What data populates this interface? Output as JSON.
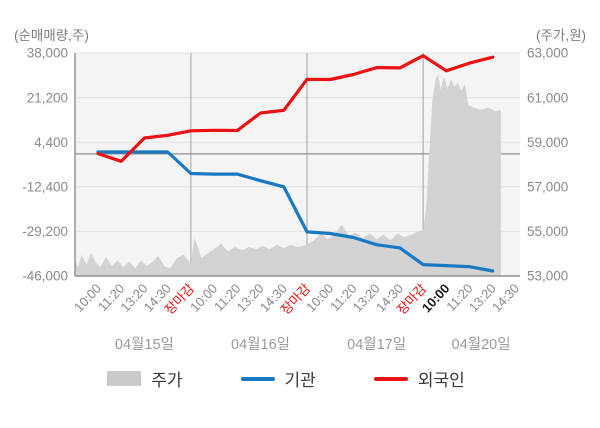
{
  "chart_data": {
    "type": "area+line",
    "title": "",
    "left_axis": {
      "title": "(순매매량,주)",
      "ticks": [
        "38,000",
        "21,200",
        "4,400",
        "-12,400",
        "-29,200",
        "-46,000"
      ],
      "range": [
        38000,
        -46000
      ]
    },
    "right_axis": {
      "title": "(주가,원)",
      "ticks": [
        "63,000",
        "61,000",
        "59,000",
        "57,000",
        "55,000",
        "53,000"
      ],
      "range": [
        63000,
        53000
      ]
    },
    "x_labels": [
      {
        "label": "10:00"
      },
      {
        "label": "11:20"
      },
      {
        "label": "13:20"
      },
      {
        "label": "14:30"
      },
      {
        "label": "장마감",
        "color": "red"
      },
      {
        "label": "10:00"
      },
      {
        "label": "11:20"
      },
      {
        "label": "13:20"
      },
      {
        "label": "14:30"
      },
      {
        "label": "장마감",
        "color": "red"
      },
      {
        "label": "10:00"
      },
      {
        "label": "11:20"
      },
      {
        "label": "13:20"
      },
      {
        "label": "14:30"
      },
      {
        "label": "장마감",
        "color": "red"
      },
      {
        "label": "10:00",
        "emphasis": true
      },
      {
        "label": "11:20"
      },
      {
        "label": "13:20"
      },
      {
        "label": "14:30"
      }
    ],
    "boundary_ticks": [
      4,
      9,
      14
    ],
    "day_groups": [
      {
        "label": "04월15일",
        "start": 0,
        "end": 4
      },
      {
        "label": "04월16일",
        "start": 5,
        "end": 9
      },
      {
        "label": "04월17일",
        "start": 10,
        "end": 14
      },
      {
        "label": "04월20일",
        "start": 15,
        "end": 18
      }
    ],
    "series": [
      {
        "name": "주가",
        "type": "area",
        "axis": "right",
        "color": "#d2d2d2",
        "points": [
          [
            -1,
            53700
          ],
          [
            -0.85,
            53400
          ],
          [
            -0.7,
            53950
          ],
          [
            -0.5,
            53500
          ],
          [
            -0.3,
            54050
          ],
          [
            -0.1,
            53600
          ],
          [
            0.1,
            53400
          ],
          [
            0.35,
            53850
          ],
          [
            0.6,
            53450
          ],
          [
            0.85,
            53700
          ],
          [
            1.1,
            53400
          ],
          [
            1.35,
            53650
          ],
          [
            1.6,
            53350
          ],
          [
            1.85,
            53700
          ],
          [
            2.1,
            53450
          ],
          [
            2.35,
            53650
          ],
          [
            2.6,
            53900
          ],
          [
            2.85,
            53450
          ],
          [
            3.1,
            53350
          ],
          [
            3.4,
            53800
          ],
          [
            3.7,
            53950
          ],
          [
            4.0,
            53550
          ],
          [
            4.15,
            54700
          ],
          [
            4.3,
            54300
          ],
          [
            4.45,
            53800
          ],
          [
            4.7,
            54000
          ],
          [
            5.0,
            54200
          ],
          [
            5.3,
            54450
          ],
          [
            5.6,
            54100
          ],
          [
            5.9,
            54300
          ],
          [
            6.2,
            54150
          ],
          [
            6.5,
            54300
          ],
          [
            6.8,
            54200
          ],
          [
            7.1,
            54350
          ],
          [
            7.4,
            54200
          ],
          [
            7.7,
            54400
          ],
          [
            8.0,
            54250
          ],
          [
            8.3,
            54400
          ],
          [
            8.6,
            54300
          ],
          [
            9.0,
            54400
          ],
          [
            9.3,
            54600
          ],
          [
            9.6,
            54900
          ],
          [
            9.9,
            54650
          ],
          [
            10.2,
            54900
          ],
          [
            10.5,
            55300
          ],
          [
            10.8,
            54800
          ],
          [
            11.1,
            54950
          ],
          [
            11.4,
            54700
          ],
          [
            11.7,
            54900
          ],
          [
            12.0,
            54650
          ],
          [
            12.3,
            54850
          ],
          [
            12.6,
            54600
          ],
          [
            12.9,
            54900
          ],
          [
            13.2,
            54750
          ],
          [
            13.5,
            54850
          ],
          [
            13.8,
            55000
          ],
          [
            14.0,
            55050
          ],
          [
            14.08,
            55600
          ],
          [
            14.15,
            56250
          ],
          [
            14.25,
            58300
          ],
          [
            14.4,
            60900
          ],
          [
            14.55,
            61900
          ],
          [
            14.65,
            62050
          ],
          [
            14.75,
            61350
          ],
          [
            14.9,
            61950
          ],
          [
            15.05,
            61400
          ],
          [
            15.2,
            61800
          ],
          [
            15.35,
            61500
          ],
          [
            15.5,
            61650
          ],
          [
            15.65,
            61300
          ],
          [
            15.8,
            61600
          ],
          [
            15.95,
            60650
          ],
          [
            16.2,
            60550
          ],
          [
            16.5,
            60450
          ],
          [
            16.8,
            60550
          ],
          [
            17.1,
            60400
          ],
          [
            17.35,
            60450
          ]
        ]
      },
      {
        "name": "기관",
        "type": "line",
        "axis": "left",
        "color": "#1779c4",
        "values": [
          700,
          700,
          700,
          700,
          -7400,
          -7600,
          -7600,
          -10100,
          -12400,
          -29400,
          -30000,
          -31500,
          -34200,
          -35400,
          -41700,
          -42100,
          -42500,
          -44100
        ]
      },
      {
        "name": "외국인",
        "type": "line",
        "axis": "left",
        "color": "#ee1111",
        "values": [
          100,
          -2800,
          6000,
          7000,
          8700,
          8900,
          8800,
          15400,
          16400,
          28100,
          28000,
          29900,
          32500,
          32400,
          37000,
          31300,
          34200,
          36400
        ]
      }
    ],
    "legend": [
      {
        "label": "주가",
        "swatch": "area",
        "color": "#c9c9c9"
      },
      {
        "label": "기관",
        "swatch": "line",
        "color": "#1779c4"
      },
      {
        "label": "외국인",
        "swatch": "line",
        "color": "#ee1111"
      }
    ],
    "colors": {
      "plot_bg": "#f4f4f4",
      "grid": "#e2e2e2",
      "day_grid": "#a2a2a2",
      "zero_line": "#8f8f8f",
      "axis": "#8f8f8f",
      "tick_text": "#8a8a8a",
      "close_label": "#ee1111",
      "emphasis_label": "#1d1d1d"
    },
    "legend_position": "bottom"
  }
}
